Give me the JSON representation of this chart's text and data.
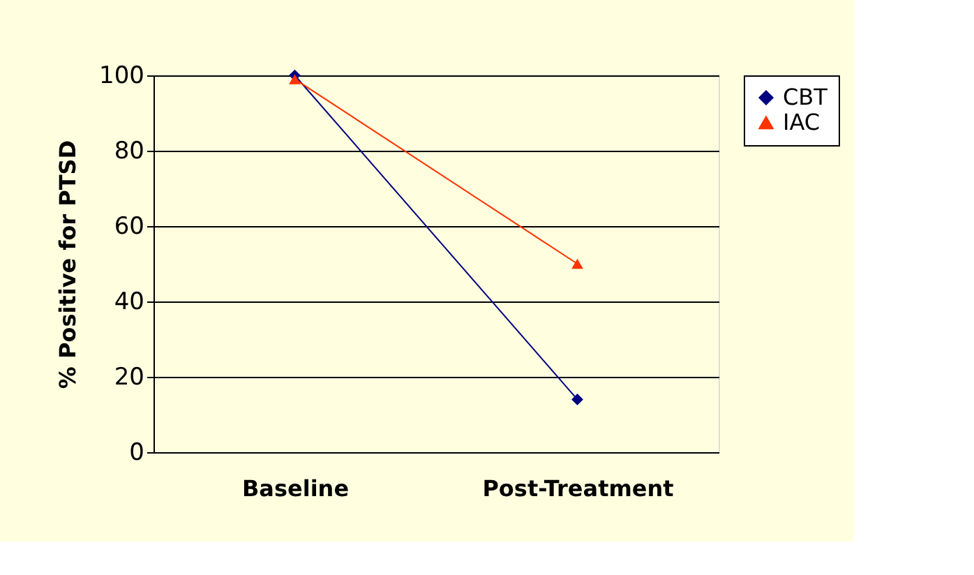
{
  "chart_data": {
    "type": "line",
    "ylabel": "% Positive for PTSD",
    "categories": [
      "Baseline",
      "Post-Treatment"
    ],
    "series": [
      {
        "name": "CBT",
        "color": "#000080",
        "values": [
          100,
          14
        ],
        "marker": "diamond"
      },
      {
        "name": "IAC",
        "color": "#ff3300",
        "values": [
          99,
          50
        ],
        "marker": "triangle"
      }
    ],
    "ylim": [
      0,
      100
    ],
    "yticks": [
      0,
      20,
      40,
      60,
      80,
      100
    ],
    "grid": "y",
    "legend": "right",
    "line_style": "solid"
  }
}
